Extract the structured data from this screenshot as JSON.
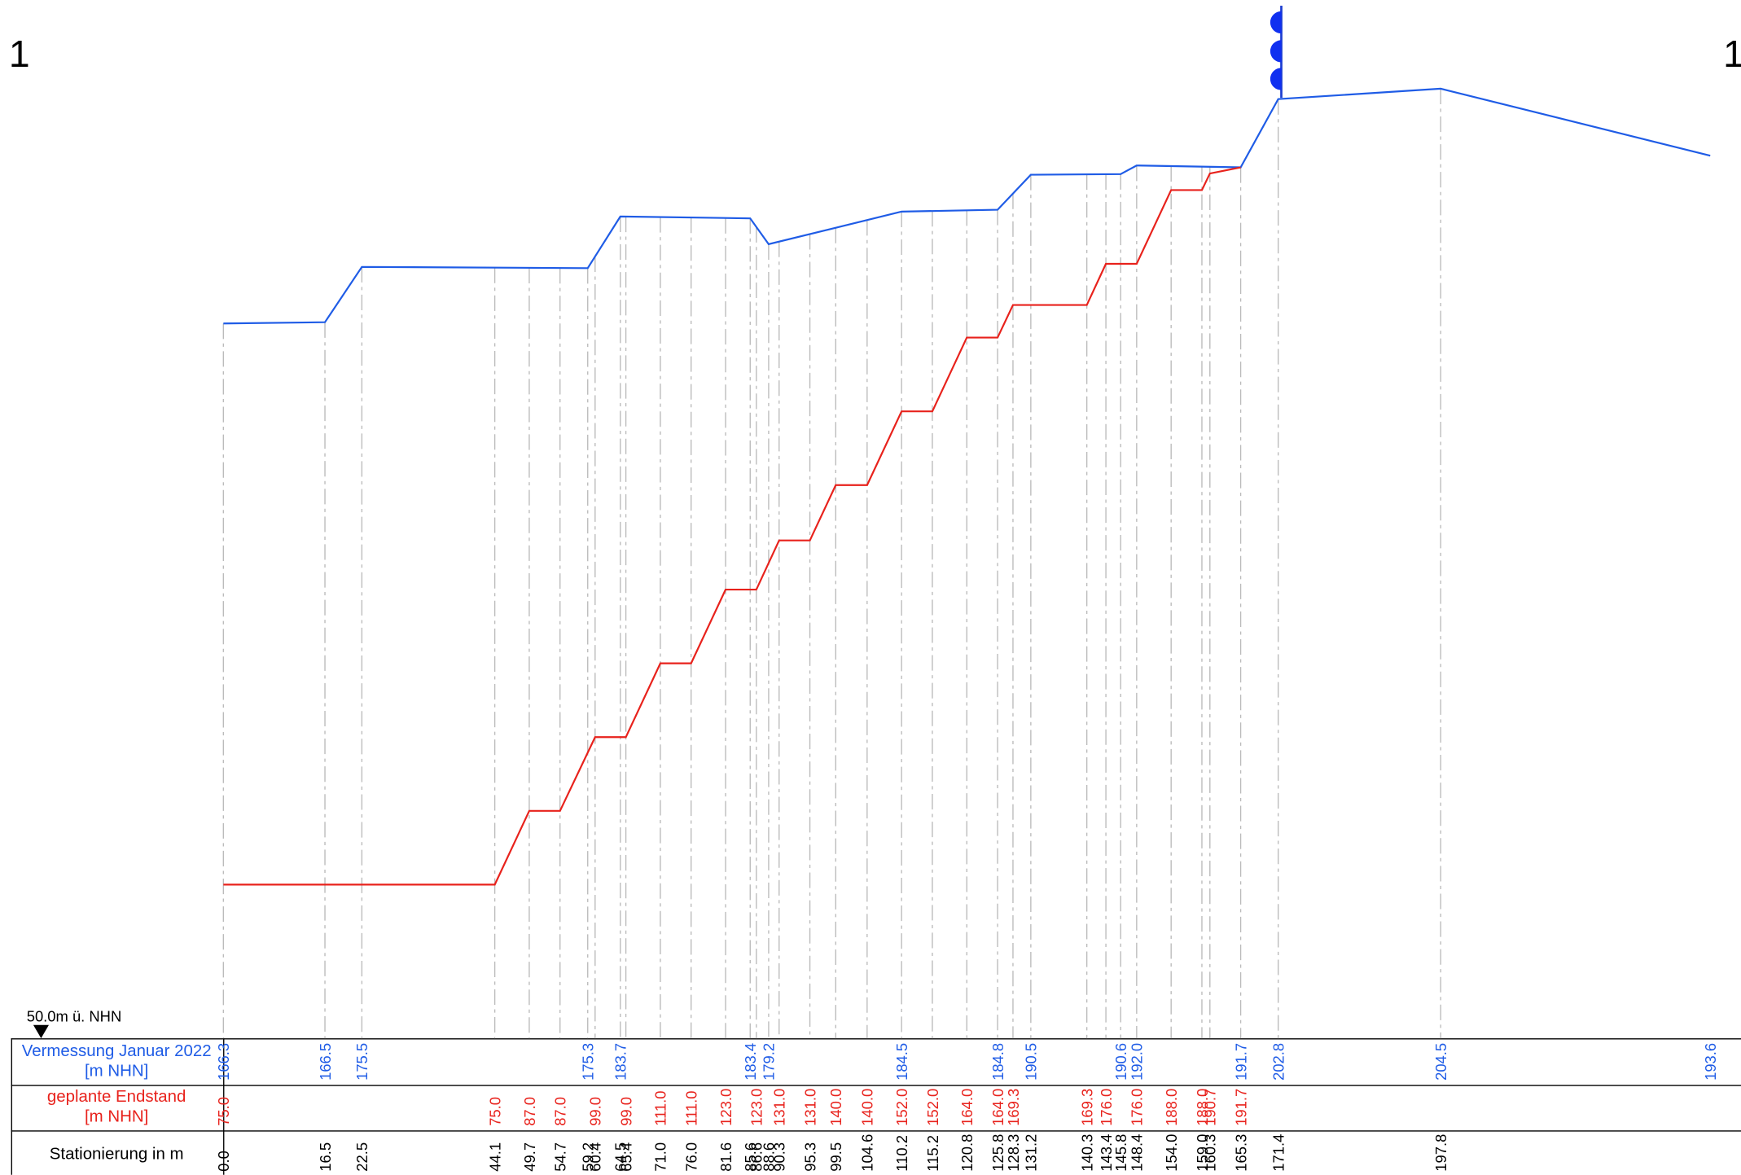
{
  "chart_data": {
    "type": "line",
    "section_labels": [
      "1",
      "1"
    ],
    "datum_label": "50.0m ü.  NHN",
    "xlabel": "Stationierung in m",
    "xlim": [
      -36.3,
      246.6
    ],
    "ylim": [
      50,
      218.9
    ],
    "x": [
      {
        "value": 0,
        "label": "0.0"
      },
      16.5,
      22.5,
      44.1,
      49.7,
      54.7,
      59.2,
      60.4,
      64.5,
      65.4,
      {
        "value": 71,
        "label": "71.0"
      },
      {
        "value": 76,
        "label": "76.0"
      },
      81.6,
      85.6,
      86.6,
      88.6,
      90.3,
      95.3,
      99.5,
      104.6,
      110.2,
      115.2,
      120.8,
      125.8,
      128.3,
      131.2,
      140.3,
      143.4,
      145.8,
      148.4,
      {
        "value": 154,
        "label": "154.0"
      },
      {
        "value": 159,
        "label": "159.0"
      },
      160.3,
      165.3,
      171.4,
      197.8
    ],
    "series": [
      {
        "name": "Vermessung Januar 2022",
        "unit": "[m NHN]",
        "color": "#1f5ce6",
        "x": [
          0,
          16.5,
          22.5,
          59.2,
          64.5,
          85.6,
          88.6,
          110.2,
          125.8,
          131.2,
          145.8,
          148.4,
          165.3,
          171.4,
          197.8,
          241.6
        ],
        "values": [
          166.3,
          166.5,
          175.5,
          175.3,
          183.7,
          183.4,
          179.2,
          184.5,
          184.8,
          190.5,
          190.6,
          192,
          191.7,
          202.8,
          204.5,
          193.6
        ],
        "value_labels": [
          "166.3",
          "166.5",
          "175.5",
          "175.3",
          "183.7",
          "183.4",
          "179.2",
          "184.5",
          "184.8",
          "190.5",
          "190.6",
          "192.0",
          "191.7",
          "202.8",
          "204.5",
          "193.6"
        ]
      },
      {
        "name": "geplante Endstand",
        "unit": "[m NHN]",
        "color": "#e8221c",
        "x": [
          0,
          44.1,
          49.7,
          54.7,
          60.4,
          65.4,
          71,
          76,
          81.6,
          86.6,
          90.3,
          95.3,
          99.5,
          104.6,
          110.2,
          115.2,
          120.8,
          125.8,
          128.3,
          140.3,
          143.4,
          148.4,
          154,
          159,
          160.3,
          165.3
        ],
        "values": [
          75,
          75,
          87,
          87,
          99,
          99,
          111,
          111,
          123,
          123,
          131,
          131,
          140,
          140,
          152,
          152,
          164,
          164,
          169.3,
          169.3,
          176,
          176,
          188,
          188,
          190.7,
          191.7
        ],
        "value_labels": [
          "75.0",
          "75.0",
          "87.0",
          "87.0",
          "99.0",
          "99.0",
          "111.0",
          "111.0",
          "123.0",
          "123.0",
          "131.0",
          "131.0",
          "140.0",
          "140.0",
          "152.0",
          "152.0",
          "164.0",
          "164.0",
          "169.3",
          "169.3",
          "176.0",
          "176.0",
          "188.0",
          "188.0",
          "190.7",
          "191.7"
        ]
      }
    ]
  }
}
